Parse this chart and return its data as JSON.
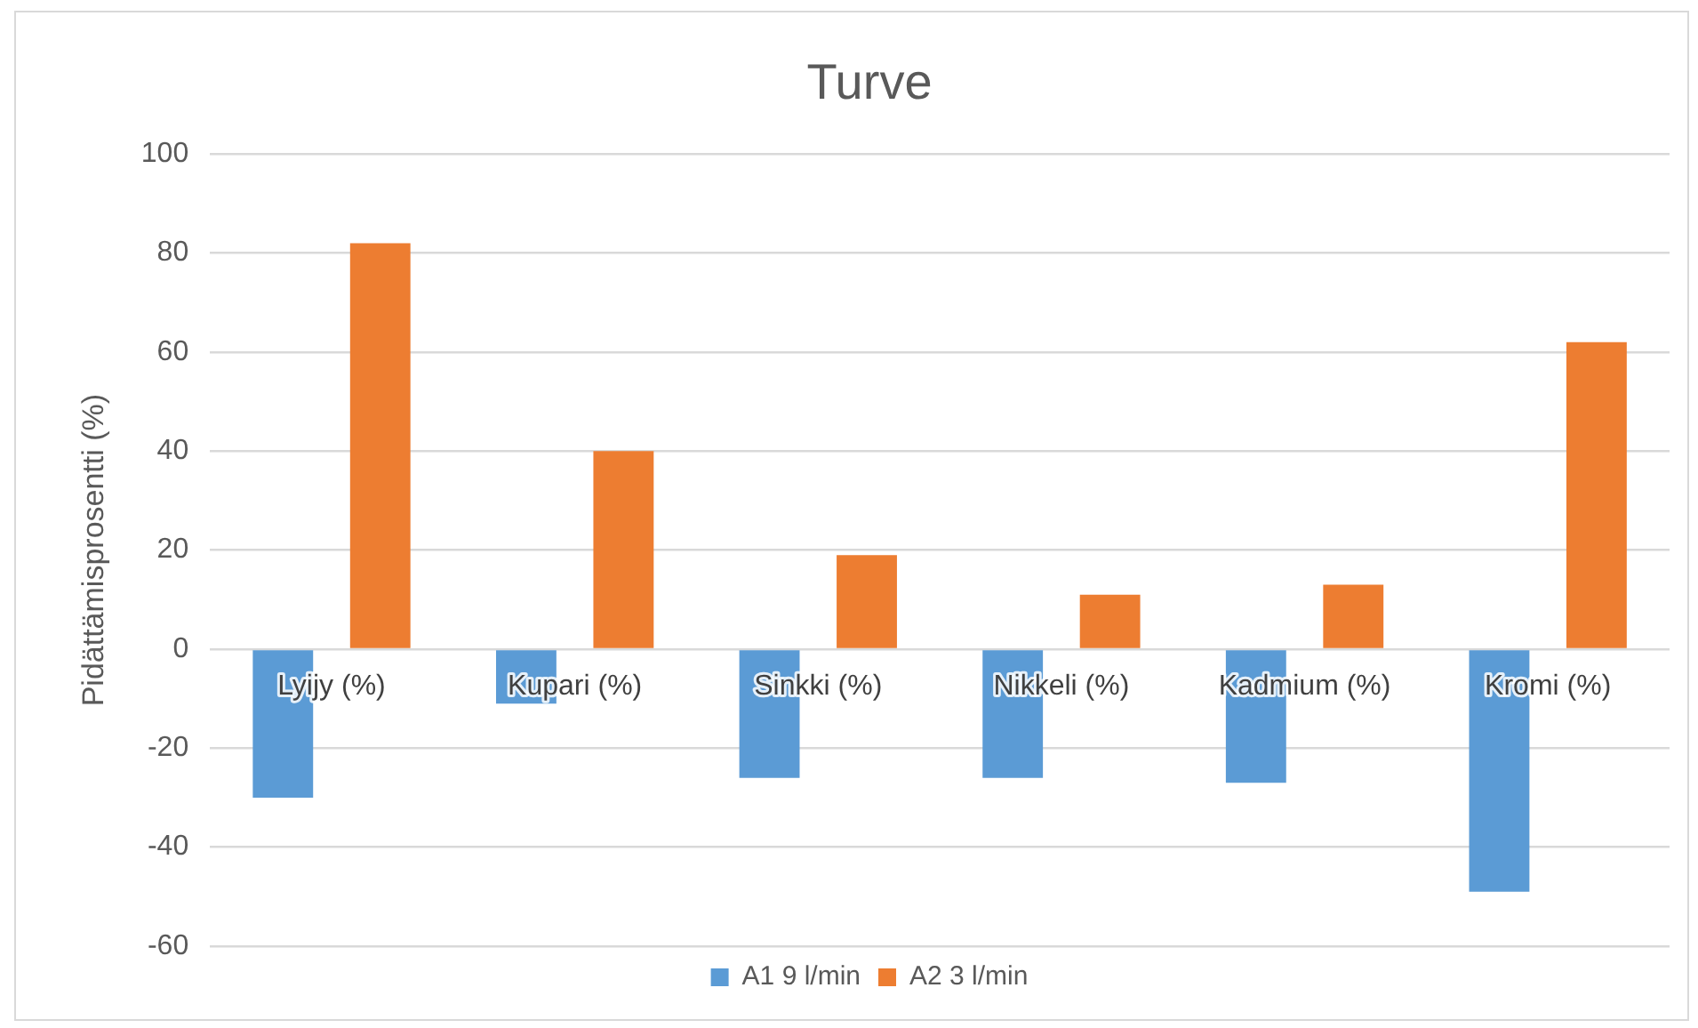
{
  "chart_data": {
    "type": "bar",
    "title": "Turve",
    "ylabel": "Pidättämisprosentti (%)",
    "categories": [
      "Lyijy (%)",
      "Kupari (%)",
      "Sinkki (%)",
      "Nikkeli (%)",
      "Kadmium (%)",
      "Kromi (%)"
    ],
    "series": [
      {
        "name": "A1 9 l/min",
        "color": "#5b9bd5",
        "values": [
          -30,
          -11,
          -26,
          -26,
          -27,
          -49
        ]
      },
      {
        "name": "A2 3 l/min",
        "color": "#ed7d31",
        "values": [
          82,
          40,
          19,
          11,
          13,
          62
        ]
      }
    ],
    "ylim": [
      -60,
      100
    ],
    "yticks": [
      -60,
      -40,
      -20,
      0,
      20,
      40,
      60,
      80,
      100
    ],
    "grid": "y",
    "legend": "bottom"
  }
}
